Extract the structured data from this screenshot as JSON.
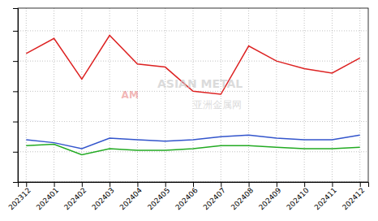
{
  "chart_data": {
    "type": "line",
    "categories": [
      "202312",
      "202401",
      "202402",
      "202403",
      "202404",
      "202405",
      "202406",
      "202407",
      "202408",
      "202409",
      "202410",
      "202411",
      "202412"
    ],
    "series": [
      {
        "color": "#dd2222",
        "values": [
          85,
          95,
          68,
          97,
          78,
          76,
          60,
          58,
          90,
          80,
          75,
          72,
          82
        ]
      },
      {
        "color": "#3355cc",
        "values": [
          28,
          26,
          22,
          29,
          28,
          27,
          28,
          30,
          31,
          29,
          28,
          28,
          31
        ]
      },
      {
        "color": "#22aa22",
        "values": [
          24,
          25,
          18,
          22,
          21,
          21,
          22,
          24,
          24,
          23,
          22,
          22,
          23
        ]
      }
    ],
    "ylim": [
      0,
      115
    ],
    "yticks": [
      0,
      20,
      40,
      60,
      80,
      100
    ],
    "tick_labels": "x",
    "grid": true,
    "annotations": [
      {
        "text": "ASIAN METAL"
      },
      {
        "text": "亚洲金属网"
      },
      {
        "text": "AM"
      }
    ]
  }
}
